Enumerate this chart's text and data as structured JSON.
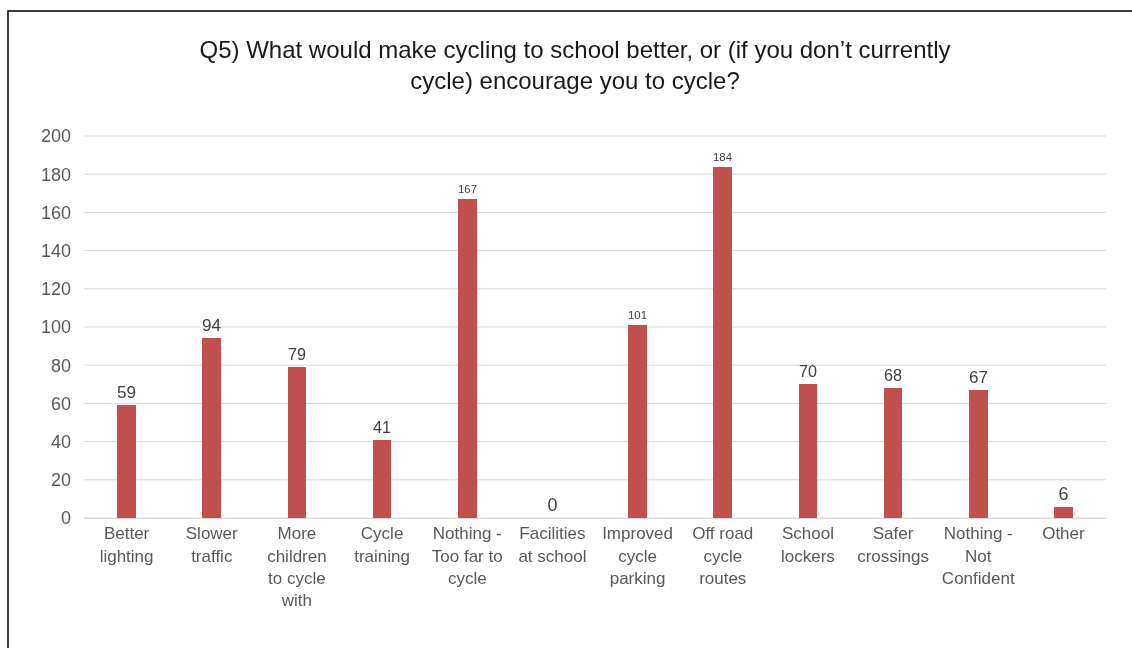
{
  "chart_data": {
    "type": "bar",
    "title": "Q5) What would make cycling to school better, or (if you don’t currently cycle) encourage you to cycle?",
    "categories": [
      "Better lighting",
      "Slower traffic",
      "More children to cycle with",
      "Cycle training",
      "Nothing - Too far to cycle",
      "Facilities at school",
      "Improved cycle parking",
      "Off road cycle routes",
      "School lockers",
      "Safer crossings",
      "Nothing - Not Confident",
      "Other"
    ],
    "values": [
      59,
      94,
      79,
      41,
      167,
      0,
      101,
      184,
      70,
      68,
      67,
      6
    ],
    "color": "#c0504d",
    "ylim": [
      0,
      200
    ],
    "yticks": [
      0,
      20,
      40,
      60,
      80,
      100,
      120,
      140,
      160,
      180,
      200
    ],
    "grid": "y",
    "data_labels": true
  }
}
